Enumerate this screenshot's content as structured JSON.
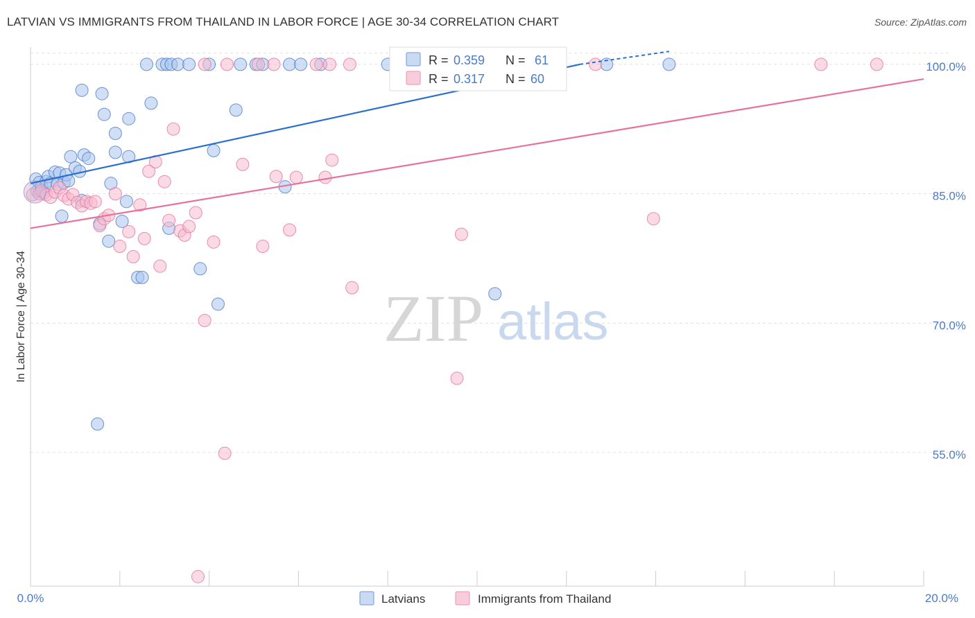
{
  "title": "LATVIAN VS IMMIGRANTS FROM THAILAND IN LABOR FORCE | AGE 30-34 CORRELATION CHART",
  "source": "Source: ZipAtlas.com",
  "watermark": {
    "zip": "ZIP",
    "atlas": "atlas"
  },
  "colors": {
    "blue": "#4a7bc8",
    "blue_fill": "#a9c4ec",
    "blue_line": "#2a6fcf",
    "pink": "#e8719a",
    "pink_fill": "#f6bccf",
    "grid": "#dddddd"
  },
  "chart_data": {
    "type": "scatter",
    "title": "LATVIAN VS IMMIGRANTS FROM THAILAND IN LABOR FORCE | AGE 30-34 CORRELATION CHART",
    "xlabel": "",
    "ylabel": "In Labor Force | Age 30-34",
    "xlim": [
      0,
      20
    ],
    "ylim": [
      39.5,
      102
    ],
    "x_tick_labels": [
      "0.0%",
      "20.0%"
    ],
    "y_ticks": [
      55,
      70,
      85,
      100
    ],
    "y_tick_labels": [
      "55.0%",
      "70.0%",
      "85.0%",
      "100.0%"
    ],
    "legend_stats": [
      {
        "r_label": "R =",
        "r_value": "0.359",
        "n_label": "N =",
        "n_value": "61"
      },
      {
        "r_label": "R =",
        "r_value": "0.317",
        "n_label": "N =",
        "n_value": "60"
      }
    ],
    "series": [
      {
        "name": "Latvians",
        "color": "#4a7bc8",
        "trend": {
          "x": [
            0,
            12.3
          ],
          "y": [
            86.2,
            100.0
          ],
          "dashed_to": [
            14.3,
            101.5
          ]
        },
        "points": [
          [
            0.12,
            86.7
          ],
          [
            0.15,
            85.3
          ],
          [
            0.2,
            86.3
          ],
          [
            0.25,
            85.8
          ],
          [
            0.3,
            85.1
          ],
          [
            0.35,
            86.4
          ],
          [
            0.4,
            87.0
          ],
          [
            0.45,
            86.2
          ],
          [
            0.55,
            87.5
          ],
          [
            0.6,
            86.1
          ],
          [
            0.65,
            87.4
          ],
          [
            0.75,
            86.3
          ],
          [
            0.8,
            87.2
          ],
          [
            0.9,
            89.3
          ],
          [
            1.0,
            88.0
          ],
          [
            1.1,
            87.6
          ],
          [
            1.2,
            89.5
          ],
          [
            1.3,
            89.1
          ],
          [
            0.85,
            86.5
          ],
          [
            1.15,
            97.0
          ],
          [
            1.6,
            96.6
          ],
          [
            1.65,
            94.2
          ],
          [
            1.9,
            92.0
          ],
          [
            2.2,
            93.7
          ],
          [
            2.7,
            95.5
          ],
          [
            1.8,
            86.2
          ],
          [
            1.9,
            89.8
          ],
          [
            2.2,
            89.3
          ],
          [
            0.7,
            82.4
          ],
          [
            1.15,
            84.2
          ],
          [
            1.55,
            81.5
          ],
          [
            1.75,
            79.5
          ],
          [
            2.05,
            81.8
          ],
          [
            2.15,
            84.1
          ],
          [
            2.4,
            75.3
          ],
          [
            2.5,
            75.3
          ],
          [
            3.1,
            81.0
          ],
          [
            3.8,
            76.3
          ],
          [
            4.2,
            72.2
          ],
          [
            4.6,
            94.7
          ],
          [
            4.1,
            90.0
          ],
          [
            5.7,
            85.8
          ],
          [
            10.4,
            73.4
          ],
          [
            1.5,
            58.3
          ],
          [
            2.6,
            100.0
          ],
          [
            2.95,
            100.0
          ],
          [
            3.05,
            100.0
          ],
          [
            3.15,
            100.0
          ],
          [
            3.3,
            100.0
          ],
          [
            3.55,
            100.0
          ],
          [
            4.0,
            100.0
          ],
          [
            4.7,
            100.0
          ],
          [
            5.05,
            100.0
          ],
          [
            5.2,
            100.0
          ],
          [
            5.8,
            100.0
          ],
          [
            6.05,
            100.0
          ],
          [
            6.5,
            100.0
          ],
          [
            8.0,
            100.0
          ],
          [
            8.7,
            100.0
          ],
          [
            12.9,
            100.0
          ],
          [
            14.3,
            100.0
          ]
        ]
      },
      {
        "name": "Immigrants from Thailand",
        "color": "#e8719a",
        "trend": {
          "x": [
            0,
            20
          ],
          "y": [
            81.0,
            98.3
          ]
        },
        "points": [
          [
            0.05,
            84.9
          ],
          [
            0.2,
            85.0
          ],
          [
            0.25,
            85.3
          ],
          [
            0.35,
            84.9
          ],
          [
            0.45,
            84.6
          ],
          [
            0.55,
            85.2
          ],
          [
            0.65,
            85.7
          ],
          [
            0.75,
            84.8
          ],
          [
            0.85,
            84.4
          ],
          [
            0.95,
            84.9
          ],
          [
            1.05,
            84.0
          ],
          [
            1.15,
            83.6
          ],
          [
            1.25,
            84.1
          ],
          [
            1.35,
            83.9
          ],
          [
            1.45,
            84.1
          ],
          [
            1.55,
            81.3
          ],
          [
            1.65,
            82.1
          ],
          [
            1.75,
            82.5
          ],
          [
            1.9,
            85.0
          ],
          [
            2.0,
            78.9
          ],
          [
            2.2,
            80.6
          ],
          [
            2.3,
            77.7
          ],
          [
            2.45,
            83.7
          ],
          [
            2.55,
            79.8
          ],
          [
            2.65,
            87.6
          ],
          [
            2.8,
            88.7
          ],
          [
            2.9,
            76.6
          ],
          [
            3.0,
            86.4
          ],
          [
            3.1,
            81.9
          ],
          [
            3.2,
            92.5
          ],
          [
            3.35,
            80.7
          ],
          [
            3.45,
            80.2
          ],
          [
            3.55,
            81.2
          ],
          [
            3.7,
            82.8
          ],
          [
            3.9,
            70.3
          ],
          [
            4.1,
            79.4
          ],
          [
            4.35,
            54.9
          ],
          [
            4.75,
            88.4
          ],
          [
            5.2,
            78.9
          ],
          [
            5.5,
            87.0
          ],
          [
            5.8,
            80.8
          ],
          [
            5.95,
            86.9
          ],
          [
            6.6,
            86.9
          ],
          [
            6.75,
            88.9
          ],
          [
            7.2,
            74.1
          ],
          [
            9.55,
            63.6
          ],
          [
            9.65,
            80.3
          ],
          [
            13.95,
            82.1
          ],
          [
            3.75,
            40.6
          ],
          [
            3.9,
            100.0
          ],
          [
            4.4,
            100.0
          ],
          [
            5.1,
            100.0
          ],
          [
            5.45,
            100.0
          ],
          [
            6.4,
            100.0
          ],
          [
            6.7,
            100.0
          ],
          [
            7.15,
            100.0
          ],
          [
            11.3,
            100.0
          ],
          [
            12.65,
            100.0
          ],
          [
            17.7,
            100.0
          ],
          [
            18.95,
            100.0
          ]
        ]
      }
    ]
  }
}
